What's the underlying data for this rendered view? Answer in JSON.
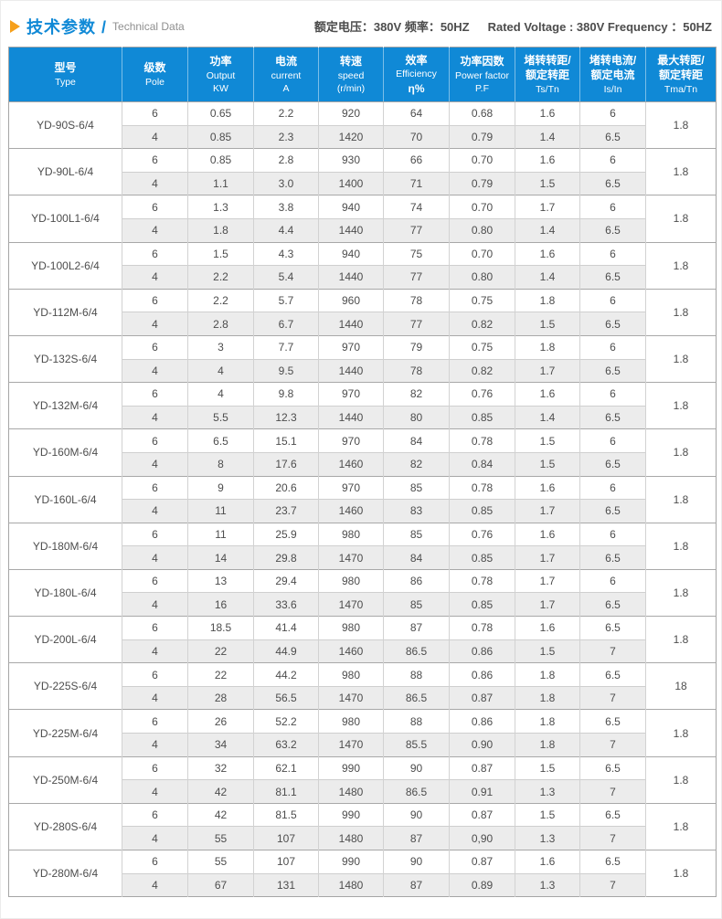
{
  "colors": {
    "accent-blue": "#1089d6",
    "accent-orange": "#f6a01b",
    "row-alt": "#ececec",
    "spec-text": "#4c4c4c"
  },
  "header": {
    "title_cn": "技术参数 /",
    "title_en": "Technical Data",
    "spec_cn": "额定电压：380V  频率：50HZ",
    "spec_en": "Rated Voltage : 380V   Frequency ：50HZ"
  },
  "table": {
    "columns": [
      {
        "key": "type",
        "lines": [
          "型号",
          "Type"
        ]
      },
      {
        "key": "pole",
        "lines": [
          "级数",
          "Pole"
        ]
      },
      {
        "key": "output",
        "lines": [
          "功率",
          "Output",
          "KW"
        ]
      },
      {
        "key": "current",
        "lines": [
          "电流",
          "current",
          "A"
        ]
      },
      {
        "key": "speed",
        "lines": [
          "转速",
          "speed",
          "(r/min)"
        ]
      },
      {
        "key": "efficiency",
        "lines": [
          "效率",
          "Efficiency",
          "η%"
        ]
      },
      {
        "key": "power-factor",
        "lines": [
          "功率因数",
          "Power factor",
          "P.F"
        ]
      },
      {
        "key": "ts-tn",
        "lines": [
          "堵转转距/",
          "额定转距",
          "Ts/Tn"
        ]
      },
      {
        "key": "is-in",
        "lines": [
          "堵转电流/",
          "额定电流",
          "Is/In"
        ]
      },
      {
        "key": "tma-tn",
        "lines": [
          "最大转距/",
          "额定转距",
          "Tma/Tn"
        ]
      }
    ],
    "groups": [
      {
        "type": "YD-90S-6/4",
        "tma": "1.8",
        "rows": [
          [
            "6",
            "0.65",
            "2.2",
            "920",
            "64",
            "0.68",
            "1.6",
            "6"
          ],
          [
            "4",
            "0.85",
            "2.3",
            "1420",
            "70",
            "0.79",
            "1.4",
            "6.5"
          ]
        ]
      },
      {
        "type": "YD-90L-6/4",
        "tma": "1.8",
        "rows": [
          [
            "6",
            "0.85",
            "2.8",
            "930",
            "66",
            "0.70",
            "1.6",
            "6"
          ],
          [
            "4",
            "1.1",
            "3.0",
            "1400",
            "71",
            "0.79",
            "1.5",
            "6.5"
          ]
        ]
      },
      {
        "type": "YD-100L1-6/4",
        "tma": "1.8",
        "rows": [
          [
            "6",
            "1.3",
            "3.8",
            "940",
            "74",
            "0.70",
            "1.7",
            "6"
          ],
          [
            "4",
            "1.8",
            "4.4",
            "1440",
            "77",
            "0.80",
            "1.4",
            "6.5"
          ]
        ]
      },
      {
        "type": "YD-100L2-6/4",
        "tma": "1.8",
        "rows": [
          [
            "6",
            "1.5",
            "4.3",
            "940",
            "75",
            "0.70",
            "1.6",
            "6"
          ],
          [
            "4",
            "2.2",
            "5.4",
            "1440",
            "77",
            "0.80",
            "1.4",
            "6.5"
          ]
        ]
      },
      {
        "type": "YD-112M-6/4",
        "tma": "1.8",
        "rows": [
          [
            "6",
            "2.2",
            "5.7",
            "960",
            "78",
            "0.75",
            "1.8",
            "6"
          ],
          [
            "4",
            "2.8",
            "6.7",
            "1440",
            "77",
            "0.82",
            "1.5",
            "6.5"
          ]
        ]
      },
      {
        "type": "YD-132S-6/4",
        "tma": "1.8",
        "rows": [
          [
            "6",
            "3",
            "7.7",
            "970",
            "79",
            "0.75",
            "1.8",
            "6"
          ],
          [
            "4",
            "4",
            "9.5",
            "1440",
            "78",
            "0.82",
            "1.7",
            "6.5"
          ]
        ]
      },
      {
        "type": "YD-132M-6/4",
        "tma": "1.8",
        "rows": [
          [
            "6",
            "4",
            "9.8",
            "970",
            "82",
            "0.76",
            "1.6",
            "6"
          ],
          [
            "4",
            "5.5",
            "12.3",
            "1440",
            "80",
            "0.85",
            "1.4",
            "6.5"
          ]
        ]
      },
      {
        "type": "YD-160M-6/4",
        "tma": "1.8",
        "rows": [
          [
            "6",
            "6.5",
            "15.1",
            "970",
            "84",
            "0.78",
            "1.5",
            "6"
          ],
          [
            "4",
            "8",
            "17.6",
            "1460",
            "82",
            "0.84",
            "1.5",
            "6.5"
          ]
        ]
      },
      {
        "type": "YD-160L-6/4",
        "tma": "1.8",
        "rows": [
          [
            "6",
            "9",
            "20.6",
            "970",
            "85",
            "0.78",
            "1.6",
            "6"
          ],
          [
            "4",
            "11",
            "23.7",
            "1460",
            "83",
            "0.85",
            "1.7",
            "6.5"
          ]
        ]
      },
      {
        "type": "YD-180M-6/4",
        "tma": "1.8",
        "rows": [
          [
            "6",
            "11",
            "25.9",
            "980",
            "85",
            "0.76",
            "1.6",
            "6"
          ],
          [
            "4",
            "14",
            "29.8",
            "1470",
            "84",
            "0.85",
            "1.7",
            "6.5"
          ]
        ]
      },
      {
        "type": "YD-180L-6/4",
        "tma": "1.8",
        "rows": [
          [
            "6",
            "13",
            "29.4",
            "980",
            "86",
            "0.78",
            "1.7",
            "6"
          ],
          [
            "4",
            "16",
            "33.6",
            "1470",
            "85",
            "0.85",
            "1.7",
            "6.5"
          ]
        ]
      },
      {
        "type": "YD-200L-6/4",
        "tma": "1.8",
        "rows": [
          [
            "6",
            "18.5",
            "41.4",
            "980",
            "87",
            "0.78",
            "1.6",
            "6.5"
          ],
          [
            "4",
            "22",
            "44.9",
            "1460",
            "86.5",
            "0.86",
            "1.5",
            "7"
          ]
        ]
      },
      {
        "type": "YD-225S-6/4",
        "tma": "18",
        "rows": [
          [
            "6",
            "22",
            "44.2",
            "980",
            "88",
            "0.86",
            "1.8",
            "6.5"
          ],
          [
            "4",
            "28",
            "56.5",
            "1470",
            "86.5",
            "0.87",
            "1.8",
            "7"
          ]
        ]
      },
      {
        "type": "YD-225M-6/4",
        "tma": "1.8",
        "rows": [
          [
            "6",
            "26",
            "52.2",
            "980",
            "88",
            "0.86",
            "1.8",
            "6.5"
          ],
          [
            "4",
            "34",
            "63.2",
            "1470",
            "85.5",
            "0.90",
            "1.8",
            "7"
          ]
        ]
      },
      {
        "type": "YD-250M-6/4",
        "tma": "1.8",
        "rows": [
          [
            "6",
            "32",
            "62.1",
            "990",
            "90",
            "0.87",
            "1.5",
            "6.5"
          ],
          [
            "4",
            "42",
            "81.1",
            "1480",
            "86.5",
            "0.91",
            "1.3",
            "7"
          ]
        ]
      },
      {
        "type": "YD-280S-6/4",
        "tma": "1.8",
        "rows": [
          [
            "6",
            "42",
            "81.5",
            "990",
            "90",
            "0.87",
            "1.5",
            "6.5"
          ],
          [
            "4",
            "55",
            "107",
            "1480",
            "87",
            "0,90",
            "1.3",
            "7"
          ]
        ]
      },
      {
        "type": "YD-280M-6/4",
        "tma": "1.8",
        "rows": [
          [
            "6",
            "55",
            "107",
            "990",
            "90",
            "0.87",
            "1.6",
            "6.5"
          ],
          [
            "4",
            "67",
            "131",
            "1480",
            "87",
            "0.89",
            "1.3",
            "7"
          ]
        ]
      }
    ]
  }
}
